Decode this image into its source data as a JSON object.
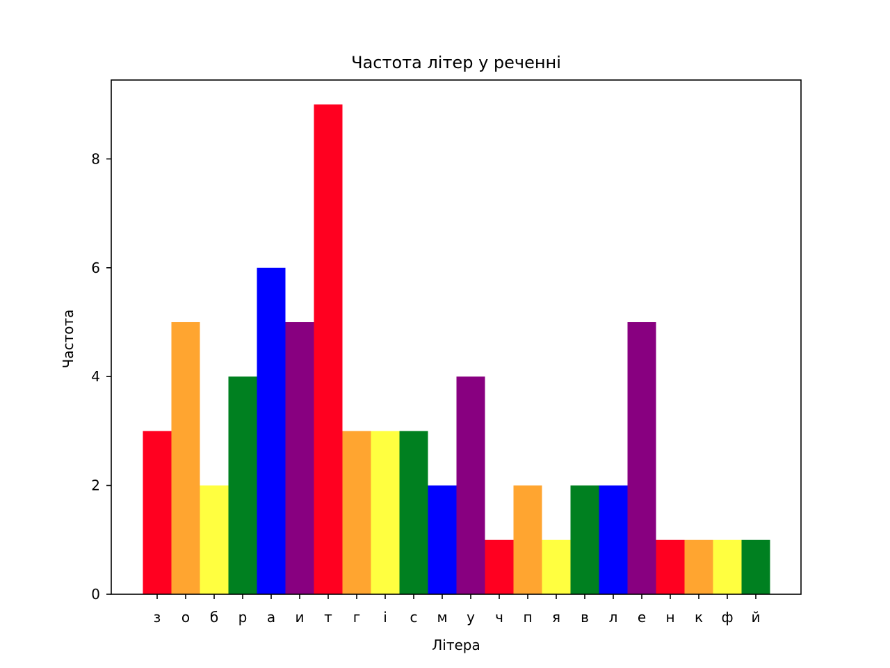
{
  "chart_data": {
    "type": "bar",
    "title": "Частота літер у реченні",
    "xlabel": "Літера",
    "ylabel": "Частота",
    "categories": [
      "з",
      "о",
      "б",
      "р",
      "а",
      "и",
      "т",
      "г",
      "і",
      "с",
      "м",
      "у",
      "ч",
      "п",
      "я",
      "в",
      "л",
      "е",
      "н",
      "к",
      "ф",
      "й"
    ],
    "values": [
      3,
      5,
      2,
      4,
      6,
      5,
      9,
      3,
      3,
      3,
      2,
      4,
      1,
      2,
      1,
      2,
      2,
      5,
      1,
      1,
      1,
      1
    ],
    "colors": [
      "#ff0020",
      "#ffa530",
      "#ffff40",
      "#008020",
      "#0000ff",
      "#880080",
      "#ff0020",
      "#ffa530",
      "#ffff40",
      "#008020",
      "#0000ff",
      "#880080",
      "#ff0020",
      "#ffa530",
      "#ffff40",
      "#008020",
      "#0000ff",
      "#880080",
      "#ff0020",
      "#ffa530",
      "#ffff40",
      "#008020"
    ],
    "yticks": [
      0,
      2,
      4,
      6,
      8
    ],
    "ylim": [
      0,
      9.45
    ],
    "grid": false,
    "legend": false
  }
}
